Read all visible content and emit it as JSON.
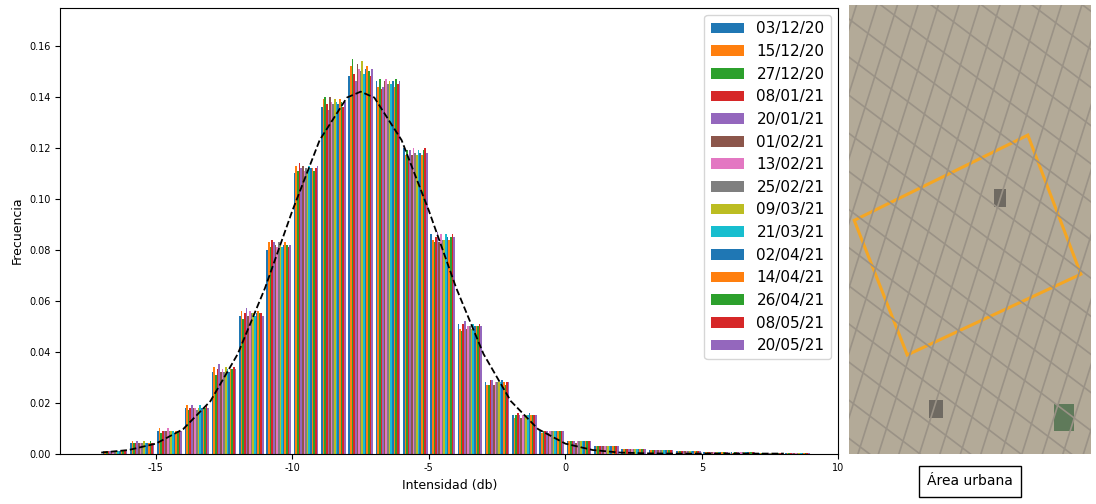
{
  "chart_data": {
    "type": "histogram",
    "x_label": "Intensidad (db)",
    "y_label": "Frecuencia",
    "bins": [
      -17,
      -16,
      -15,
      -14,
      -13,
      -12,
      -11,
      -10,
      -9,
      -8,
      -7,
      -6,
      -5,
      -4,
      -3,
      -2,
      -1,
      0,
      1,
      2,
      3,
      4,
      5,
      6,
      7,
      8,
      9
    ],
    "series": [
      {
        "name": "03/12/20",
        "color": "#1f77b4",
        "values": [
          0.001,
          0.004,
          0.009,
          0.018,
          0.032,
          0.054,
          0.08,
          0.11,
          0.136,
          0.148,
          0.146,
          0.12,
          0.086,
          0.051,
          0.028,
          0.015,
          0.009,
          0.005,
          0.003,
          0.002,
          0.0015,
          0.001,
          0.0007,
          0.0005,
          0.0003,
          0.0002
        ]
      },
      {
        "name": "15/12/20",
        "color": "#ff7f0e",
        "values": [
          0.001,
          0.005,
          0.01,
          0.019,
          0.034,
          0.056,
          0.083,
          0.113,
          0.139,
          0.152,
          0.144,
          0.117,
          0.084,
          0.049,
          0.027,
          0.014,
          0.008,
          0.005,
          0.003,
          0.002,
          0.0014,
          0.001,
          0.0006,
          0.0004,
          0.0003,
          0.0002
        ]
      },
      {
        "name": "27/12/20",
        "color": "#2ca02c",
        "values": [
          0.001,
          0.004,
          0.008,
          0.017,
          0.031,
          0.053,
          0.081,
          0.111,
          0.14,
          0.155,
          0.147,
          0.119,
          0.083,
          0.048,
          0.027,
          0.015,
          0.009,
          0.005,
          0.003,
          0.002,
          0.0015,
          0.001,
          0.0007,
          0.0005,
          0.0003,
          0.0002
        ]
      },
      {
        "name": "08/01/21",
        "color": "#d62728",
        "values": [
          0.001,
          0.004,
          0.009,
          0.018,
          0.033,
          0.055,
          0.084,
          0.114,
          0.137,
          0.149,
          0.143,
          0.116,
          0.085,
          0.051,
          0.029,
          0.016,
          0.009,
          0.005,
          0.003,
          0.002,
          0.0016,
          0.001,
          0.0007,
          0.0005,
          0.0003,
          0.0002
        ]
      },
      {
        "name": "20/01/21",
        "color": "#9467bd",
        "values": [
          0.001,
          0.005,
          0.009,
          0.019,
          0.035,
          0.057,
          0.083,
          0.112,
          0.135,
          0.146,
          0.144,
          0.119,
          0.087,
          0.052,
          0.029,
          0.015,
          0.009,
          0.005,
          0.003,
          0.002,
          0.0015,
          0.001,
          0.0007,
          0.0005,
          0.0003,
          0.0002
        ]
      },
      {
        "name": "01/02/21",
        "color": "#8c564b",
        "values": [
          0.001,
          0.004,
          0.009,
          0.018,
          0.032,
          0.054,
          0.082,
          0.113,
          0.14,
          0.153,
          0.146,
          0.117,
          0.083,
          0.049,
          0.027,
          0.014,
          0.008,
          0.004,
          0.003,
          0.002,
          0.0014,
          0.001,
          0.0006,
          0.0004,
          0.0003,
          0.0002
        ]
      },
      {
        "name": "13/02/21",
        "color": "#e377c2",
        "values": [
          0.001,
          0.004,
          0.01,
          0.018,
          0.033,
          0.056,
          0.081,
          0.111,
          0.138,
          0.151,
          0.147,
          0.12,
          0.086,
          0.05,
          0.028,
          0.015,
          0.009,
          0.005,
          0.003,
          0.002,
          0.0015,
          0.001,
          0.0007,
          0.0005,
          0.0003,
          0.0002
        ]
      },
      {
        "name": "25/02/21",
        "color": "#7f7f7f",
        "values": [
          0.001,
          0.004,
          0.009,
          0.017,
          0.032,
          0.055,
          0.083,
          0.112,
          0.137,
          0.15,
          0.145,
          0.118,
          0.084,
          0.05,
          0.028,
          0.015,
          0.009,
          0.005,
          0.003,
          0.002,
          0.0015,
          0.001,
          0.0007,
          0.0005,
          0.0003,
          0.0002
        ]
      },
      {
        "name": "09/03/21",
        "color": "#bcbd22",
        "values": [
          0.001,
          0.005,
          0.009,
          0.018,
          0.034,
          0.055,
          0.082,
          0.111,
          0.139,
          0.154,
          0.146,
          0.117,
          0.084,
          0.049,
          0.028,
          0.015,
          0.009,
          0.005,
          0.003,
          0.002,
          0.0015,
          0.001,
          0.0007,
          0.0005,
          0.0003,
          0.0002
        ]
      },
      {
        "name": "21/03/21",
        "color": "#17becf",
        "values": [
          0.001,
          0.004,
          0.009,
          0.019,
          0.033,
          0.054,
          0.081,
          0.113,
          0.138,
          0.149,
          0.145,
          0.119,
          0.086,
          0.051,
          0.028,
          0.015,
          0.009,
          0.005,
          0.003,
          0.002,
          0.0015,
          0.001,
          0.0007,
          0.0005,
          0.0003,
          0.0002
        ]
      },
      {
        "name": "02/04/21",
        "color": "#1f77b4",
        "values": [
          0.001,
          0.004,
          0.008,
          0.018,
          0.032,
          0.055,
          0.082,
          0.112,
          0.137,
          0.151,
          0.146,
          0.118,
          0.085,
          0.05,
          0.029,
          0.016,
          0.009,
          0.005,
          0.003,
          0.002,
          0.0015,
          0.001,
          0.0007,
          0.0005,
          0.0003,
          0.0002
        ]
      },
      {
        "name": "14/04/21",
        "color": "#ff7f0e",
        "values": [
          0.001,
          0.004,
          0.009,
          0.018,
          0.033,
          0.056,
          0.083,
          0.112,
          0.139,
          0.152,
          0.144,
          0.117,
          0.084,
          0.05,
          0.028,
          0.015,
          0.009,
          0.005,
          0.003,
          0.002,
          0.0015,
          0.001,
          0.0007,
          0.0005,
          0.0003,
          0.0002
        ]
      },
      {
        "name": "26/04/21",
        "color": "#2ca02c",
        "values": [
          0.001,
          0.005,
          0.009,
          0.018,
          0.033,
          0.055,
          0.082,
          0.111,
          0.138,
          0.15,
          0.147,
          0.119,
          0.085,
          0.05,
          0.027,
          0.015,
          0.009,
          0.005,
          0.003,
          0.002,
          0.0015,
          0.001,
          0.0007,
          0.0005,
          0.0003,
          0.0002
        ]
      },
      {
        "name": "08/05/21",
        "color": "#d62728",
        "values": [
          0.001,
          0.004,
          0.009,
          0.019,
          0.034,
          0.055,
          0.081,
          0.112,
          0.136,
          0.148,
          0.145,
          0.12,
          0.086,
          0.051,
          0.028,
          0.015,
          0.009,
          0.005,
          0.003,
          0.002,
          0.0015,
          0.001,
          0.0007,
          0.0005,
          0.0003,
          0.0002
        ]
      },
      {
        "name": "20/05/21",
        "color": "#9467bd",
        "values": [
          0.001,
          0.004,
          0.009,
          0.018,
          0.033,
          0.054,
          0.082,
          0.113,
          0.138,
          0.151,
          0.146,
          0.118,
          0.085,
          0.05,
          0.028,
          0.015,
          0.009,
          0.005,
          0.003,
          0.002,
          0.0015,
          0.001,
          0.0007,
          0.0005,
          0.0003,
          0.0002
        ]
      }
    ],
    "fit": {
      "color": "#000000",
      "line_style": "dashed",
      "x": [
        -17,
        -16,
        -15,
        -14,
        -13,
        -12,
        -11,
        -10,
        -9,
        -8,
        -7.5,
        -7,
        -6,
        -5,
        -4,
        -3,
        -2,
        -1,
        0,
        1,
        2,
        3,
        4,
        5,
        6,
        7,
        8
      ],
      "values": [
        0.0004,
        0.0014,
        0.0039,
        0.0096,
        0.0206,
        0.0391,
        0.065,
        0.0953,
        0.123,
        0.1397,
        0.142,
        0.1397,
        0.123,
        0.0953,
        0.065,
        0.0391,
        0.0206,
        0.0096,
        0.0039,
        0.0014,
        0.0004,
        0.0001,
        0,
        0,
        0,
        0,
        0
      ]
    },
    "xlim": [
      -18.5,
      10
    ],
    "xticks": [
      -15,
      -10,
      -5,
      0,
      5,
      10
    ],
    "ylim": [
      0,
      0.175
    ],
    "yticks": [
      {
        "value": 0,
        "label": "0.00"
      },
      {
        "value": 0.02,
        "label": "0.02"
      },
      {
        "value": 0.04,
        "label": "0.04"
      },
      {
        "value": 0.06,
        "label": "0.06"
      },
      {
        "value": 0.08,
        "label": "0.08"
      },
      {
        "value": 0.1,
        "label": "0.10"
      },
      {
        "value": 0.12,
        "label": "0.12"
      },
      {
        "value": 0.14,
        "label": "0.14"
      },
      {
        "value": 0.16,
        "label": "0.16"
      }
    ],
    "legend": "upper right",
    "grid": false
  },
  "image_panel": {
    "caption": "Área urbana"
  }
}
